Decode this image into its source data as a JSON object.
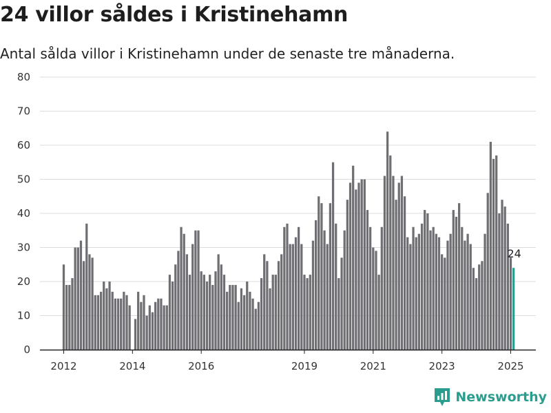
{
  "title": "24 villor såldes i Kristinehamn",
  "subtitle": "Antal sålda villor i Kristinehamn under de senaste tre månaderna.",
  "brand": {
    "name": "Newsworthy",
    "color": "#2a9d8f"
  },
  "chart_data": {
    "type": "bar",
    "start": "2012-01",
    "end": "2025-01",
    "x_ticks": [
      "2012",
      "2014",
      "2016",
      "2019",
      "2021",
      "2023",
      "2025"
    ],
    "y_ticks": [
      0,
      10,
      20,
      30,
      40,
      50,
      60,
      70,
      80
    ],
    "ylim": [
      0,
      80
    ],
    "grid": true,
    "bar_color": "#6f6e72",
    "highlight_color": "#2a9d8f",
    "highlight_label": "24",
    "values": [
      25,
      19,
      19,
      21,
      30,
      30,
      32,
      26,
      37,
      28,
      27,
      16,
      16,
      17,
      20,
      18,
      20,
      17,
      15,
      15,
      15,
      17,
      16,
      13,
      0,
      9,
      17,
      14,
      16,
      10,
      13,
      11,
      14,
      15,
      15,
      13,
      13,
      22,
      20,
      25,
      29,
      36,
      34,
      28,
      22,
      31,
      35,
      35,
      23,
      22,
      20,
      22,
      19,
      23,
      28,
      25,
      22,
      17,
      19,
      19,
      19,
      14,
      18,
      16,
      20,
      17,
      15,
      12,
      14,
      21,
      28,
      26,
      18,
      22,
      22,
      26,
      28,
      36,
      37,
      31,
      31,
      33,
      36,
      31,
      22,
      21,
      22,
      32,
      38,
      45,
      43,
      35,
      31,
      43,
      55,
      37,
      21,
      27,
      35,
      44,
      49,
      54,
      47,
      49,
      50,
      50,
      41,
      36,
      30,
      29,
      22,
      36,
      51,
      64,
      57,
      51,
      44,
      49,
      51,
      45,
      33,
      31,
      36,
      33,
      34,
      37,
      41,
      40,
      35,
      36,
      34,
      33,
      28,
      27,
      32,
      34,
      41,
      39,
      43,
      36,
      32,
      34,
      31,
      24,
      21,
      25,
      26,
      34,
      46,
      61,
      56,
      57,
      40,
      44,
      42,
      37,
      27,
      24
    ]
  }
}
